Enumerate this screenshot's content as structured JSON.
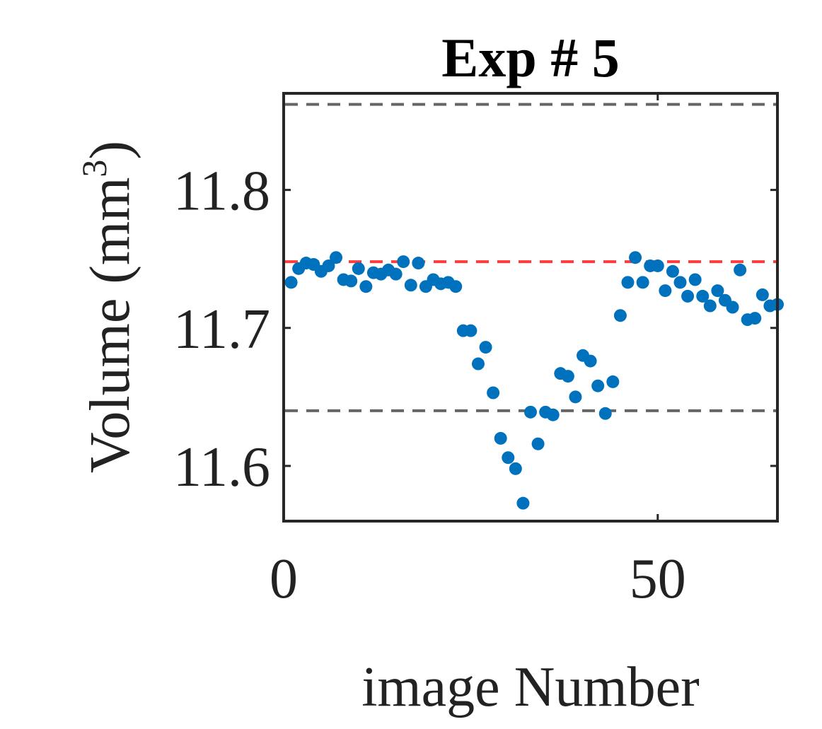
{
  "chart_data": {
    "type": "scatter",
    "title": "Exp # 5",
    "xlabel": "image Number",
    "ylabel": "Volume (mm",
    "ylabel_superscript": "3",
    "ylabel_close": ")",
    "xlim": [
      0,
      66
    ],
    "ylim": [
      11.56,
      11.87
    ],
    "xticks": [
      0,
      50
    ],
    "xtick_labels": [
      "0",
      "50"
    ],
    "yticks": [
      11.6,
      11.7,
      11.8
    ],
    "ytick_labels": [
      "11.6",
      "11.7",
      "11.8"
    ],
    "grid": false,
    "legend": "none",
    "reference_lines": [
      {
        "y": 11.862,
        "color": "#666666",
        "style": "dashed"
      },
      {
        "y": 11.748,
        "color": "#ff3b3b",
        "style": "dashed"
      },
      {
        "y": 11.64,
        "color": "#666666",
        "style": "dashed"
      }
    ],
    "marker_color": "#0072bd",
    "series": [
      {
        "x": [
          1,
          2,
          3,
          4,
          5,
          6,
          7,
          8,
          9,
          10,
          11,
          12,
          13,
          14,
          15,
          16,
          17,
          18,
          19,
          20,
          21,
          22,
          23,
          24,
          25,
          26,
          27,
          28,
          29,
          30,
          31,
          32,
          33,
          34,
          35,
          36,
          37,
          38,
          39,
          40,
          41,
          42,
          43,
          44,
          45,
          46,
          47,
          48,
          49,
          50,
          51,
          52,
          53,
          54,
          55,
          56,
          57,
          58,
          59,
          60,
          61,
          62,
          63,
          64,
          65,
          66
        ],
        "y": [
          11.733,
          11.743,
          11.747,
          11.746,
          11.741,
          11.745,
          11.751,
          11.735,
          11.734,
          11.743,
          11.73,
          11.74,
          11.739,
          11.742,
          11.739,
          11.748,
          11.731,
          11.747,
          11.73,
          11.735,
          11.732,
          11.733,
          11.73,
          11.698,
          11.698,
          11.674,
          11.686,
          11.653,
          11.62,
          11.606,
          11.598,
          11.573,
          11.639,
          11.616,
          11.639,
          11.637,
          11.667,
          11.665,
          11.65,
          11.68,
          11.676,
          11.658,
          11.638,
          11.661,
          11.709,
          11.733,
          11.751,
          11.733,
          11.745,
          11.745,
          11.727,
          11.741,
          11.733,
          11.723,
          11.735,
          11.723,
          11.716,
          11.727,
          11.72,
          11.715,
          11.742,
          11.706,
          11.707,
          11.724,
          11.716,
          11.717
        ]
      }
    ]
  }
}
